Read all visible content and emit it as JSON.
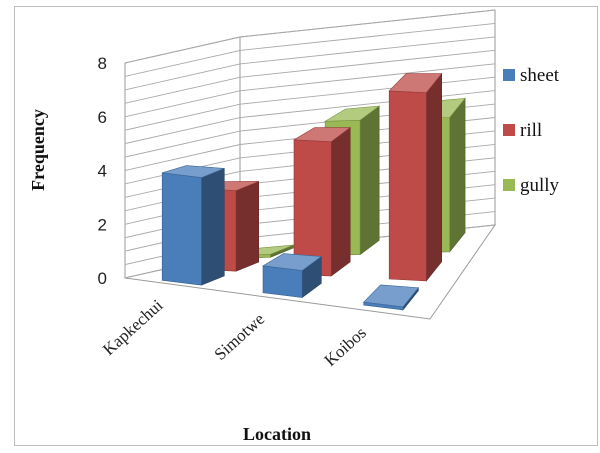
{
  "chart_data": {
    "type": "bar",
    "subtype": "3d-clustered-column",
    "title": "",
    "xlabel": "Location",
    "ylabel": "Frequency",
    "ylim": [
      0,
      8
    ],
    "yticks": [
      "0",
      "2",
      "4",
      "6",
      "8"
    ],
    "categories": [
      "Kapkechui",
      "Simotwe",
      "Koibos"
    ],
    "series": [
      {
        "name": "sheet",
        "color": "#4a7ebb",
        "values": [
          4,
          1,
          0
        ]
      },
      {
        "name": "rill",
        "color": "#be4b48",
        "values": [
          3,
          5,
          7
        ]
      },
      {
        "name": "gully",
        "color": "#98b954",
        "values": [
          0,
          5,
          5
        ]
      }
    ],
    "grid": true,
    "legend": "right"
  }
}
